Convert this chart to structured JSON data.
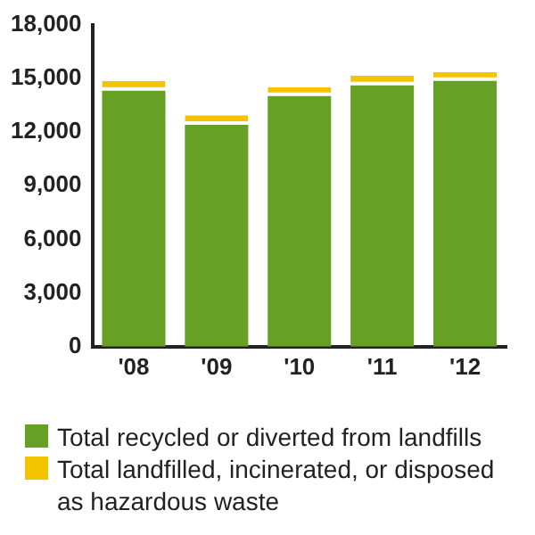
{
  "chart_data": {
    "type": "bar",
    "stacked": true,
    "categories": [
      "'08",
      "'09",
      "'10",
      "'11",
      "'12"
    ],
    "series": [
      {
        "name": "Total recycled or diverted from landfills",
        "color": "#66a024",
        "values": [
          14300,
          12400,
          14000,
          14600,
          14850
        ]
      },
      {
        "name": "Total landfilled, incinerated, or disposed as hazardous waste",
        "color": "#f5c400",
        "values": [
          550,
          530,
          500,
          550,
          500
        ]
      }
    ],
    "ylim": [
      0,
      18000
    ],
    "yticks": [
      {
        "value": 0,
        "label": "0"
      },
      {
        "value": 3000,
        "label": "3,000"
      },
      {
        "value": 6000,
        "label": "6,000"
      },
      {
        "value": 9000,
        "label": "9,000"
      },
      {
        "value": 12000,
        "label": "12,000"
      },
      {
        "value": 15000,
        "label": "15,000"
      },
      {
        "value": 18000,
        "label": "18,000"
      }
    ],
    "grid": false,
    "legend": "bottom"
  }
}
